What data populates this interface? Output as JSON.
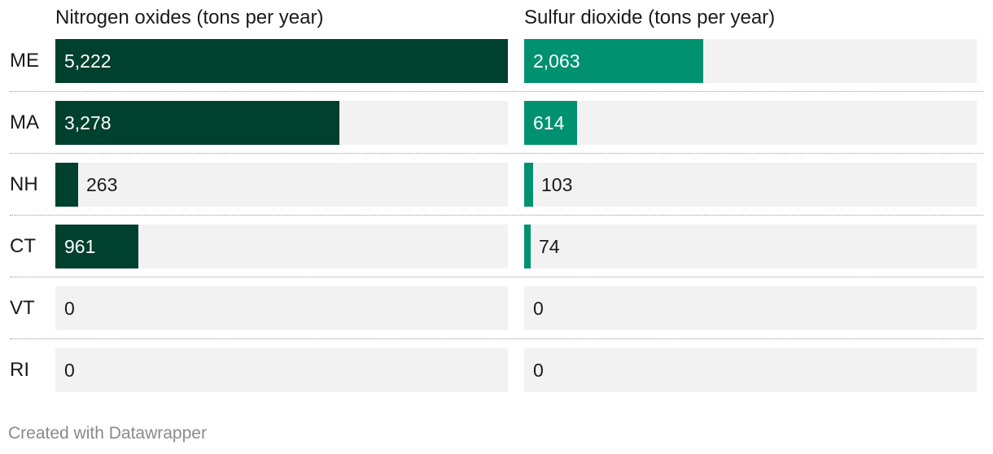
{
  "chart_data": {
    "type": "bar",
    "orientation": "horizontal",
    "categories": [
      "ME",
      "MA",
      "NH",
      "CT",
      "VT",
      "RI"
    ],
    "series": [
      {
        "name": "Nitrogen oxides (tons per year)",
        "values": [
          5222,
          3278,
          263,
          961,
          0,
          0
        ],
        "labels": [
          "5,222",
          "3,278",
          "263",
          "961",
          "0",
          "0"
        ],
        "max": 5222,
        "color": "#00402e"
      },
      {
        "name": "Sulfur dioxide (tons per year)",
        "values": [
          2063,
          614,
          103,
          74,
          0,
          0
        ],
        "labels": [
          "2,063",
          "614",
          "103",
          "74",
          "0",
          "0"
        ],
        "max": 5222,
        "color": "#009170"
      }
    ]
  },
  "colors": {
    "track": "#f2f2f2",
    "text": "#1a1a1a",
    "label_inside": "#ffffff"
  },
  "footer": "Created with Datawrapper"
}
